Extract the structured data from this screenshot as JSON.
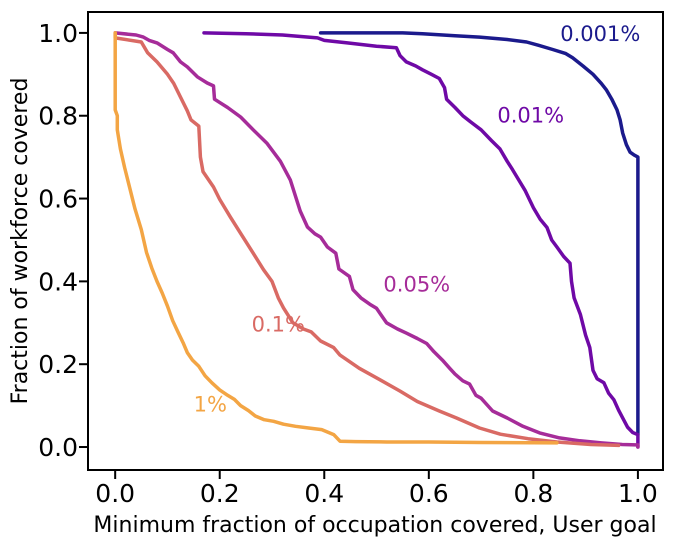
{
  "chart_data": {
    "type": "line",
    "title": "",
    "xlabel": "Minimum fraction of occupation covered, User goal",
    "ylabel": "Fraction of workforce covered",
    "xlim": [
      -0.052,
      1.048
    ],
    "ylim": [
      -0.0555,
      1.0505
    ],
    "grid": false,
    "legend": "inline-curve-labels",
    "background_color": "#ffffff",
    "axis_color": "#000000",
    "x_ticks": {
      "values": [
        0.0,
        0.2,
        0.4,
        0.6,
        0.8,
        1.0
      ],
      "labels": [
        "0.0",
        "0.2",
        "0.4",
        "0.6",
        "0.8",
        "1.0"
      ]
    },
    "y_ticks": {
      "values": [
        0.0,
        0.2,
        0.4,
        0.6,
        0.8,
        1.0
      ],
      "labels": [
        "0.0",
        "0.2",
        "0.4",
        "0.6",
        "0.8",
        "1.0"
      ]
    },
    "series": [
      {
        "name": "0.001%",
        "color": "#1b1a8c",
        "label_x": 0.928,
        "label_y": 0.998,
        "points": [
          [
            0.393,
            1.0
          ],
          [
            0.55,
            1.0
          ],
          [
            0.588,
            0.998
          ],
          [
            0.65,
            0.993
          ],
          [
            0.697,
            0.99
          ],
          [
            0.75,
            0.984
          ],
          [
            0.787,
            0.978
          ],
          [
            0.81,
            0.97
          ],
          [
            0.837,
            0.96
          ],
          [
            0.862,
            0.95
          ],
          [
            0.875,
            0.94
          ],
          [
            0.895,
            0.92
          ],
          [
            0.914,
            0.9
          ],
          [
            0.93,
            0.878
          ],
          [
            0.94,
            0.862
          ],
          [
            0.95,
            0.84
          ],
          [
            0.96,
            0.814
          ],
          [
            0.966,
            0.79
          ],
          [
            0.971,
            0.758
          ],
          [
            0.978,
            0.73
          ],
          [
            0.985,
            0.712
          ],
          [
            0.993,
            0.705
          ],
          [
            1.0,
            0.7
          ],
          [
            1.0,
            0.03
          ]
        ]
      },
      {
        "name": "0.01%",
        "color": "#6f09a6",
        "label_x": 0.795,
        "label_y": 0.802,
        "points": [
          [
            0.17,
            1.0
          ],
          [
            0.25,
            0.998
          ],
          [
            0.32,
            0.995
          ],
          [
            0.387,
            0.988
          ],
          [
            0.4,
            0.982
          ],
          [
            0.444,
            0.976
          ],
          [
            0.5,
            0.968
          ],
          [
            0.538,
            0.964
          ],
          [
            0.545,
            0.945
          ],
          [
            0.557,
            0.93
          ],
          [
            0.575,
            0.92
          ],
          [
            0.588,
            0.911
          ],
          [
            0.605,
            0.9
          ],
          [
            0.62,
            0.89
          ],
          [
            0.63,
            0.868
          ],
          [
            0.634,
            0.84
          ],
          [
            0.65,
            0.82
          ],
          [
            0.665,
            0.8
          ],
          [
            0.68,
            0.785
          ],
          [
            0.7,
            0.766
          ],
          [
            0.72,
            0.74
          ],
          [
            0.736,
            0.72
          ],
          [
            0.75,
            0.69
          ],
          [
            0.76,
            0.67
          ],
          [
            0.772,
            0.645
          ],
          [
            0.784,
            0.62
          ],
          [
            0.8,
            0.578
          ],
          [
            0.813,
            0.55
          ],
          [
            0.826,
            0.53
          ],
          [
            0.835,
            0.5
          ],
          [
            0.845,
            0.483
          ],
          [
            0.858,
            0.46
          ],
          [
            0.87,
            0.444
          ],
          [
            0.873,
            0.4
          ],
          [
            0.878,
            0.36
          ],
          [
            0.89,
            0.32
          ],
          [
            0.9,
            0.27
          ],
          [
            0.908,
            0.24
          ],
          [
            0.914,
            0.185
          ],
          [
            0.922,
            0.165
          ],
          [
            0.935,
            0.155
          ],
          [
            0.944,
            0.13
          ],
          [
            0.954,
            0.114
          ],
          [
            0.963,
            0.089
          ],
          [
            0.973,
            0.065
          ],
          [
            0.98,
            0.048
          ],
          [
            0.99,
            0.035
          ],
          [
            1.0,
            0.03
          ],
          [
            1.0,
            0.0
          ]
        ]
      },
      {
        "name": "0.05%",
        "color": "#a62c99",
        "label_x": 0.577,
        "label_y": 0.394,
        "points": [
          [
            0.0,
            1.0
          ],
          [
            0.04,
            0.995
          ],
          [
            0.054,
            0.99
          ],
          [
            0.065,
            0.982
          ],
          [
            0.08,
            0.976
          ],
          [
            0.1,
            0.96
          ],
          [
            0.111,
            0.952
          ],
          [
            0.125,
            0.93
          ],
          [
            0.138,
            0.918
          ],
          [
            0.157,
            0.894
          ],
          [
            0.176,
            0.879
          ],
          [
            0.188,
            0.872
          ],
          [
            0.19,
            0.84
          ],
          [
            0.215,
            0.82
          ],
          [
            0.24,
            0.797
          ],
          [
            0.264,
            0.766
          ],
          [
            0.29,
            0.734
          ],
          [
            0.316,
            0.69
          ],
          [
            0.335,
            0.645
          ],
          [
            0.354,
            0.57
          ],
          [
            0.368,
            0.531
          ],
          [
            0.382,
            0.515
          ],
          [
            0.393,
            0.507
          ],
          [
            0.406,
            0.483
          ],
          [
            0.422,
            0.468
          ],
          [
            0.428,
            0.43
          ],
          [
            0.448,
            0.412
          ],
          [
            0.455,
            0.38
          ],
          [
            0.47,
            0.36
          ],
          [
            0.487,
            0.345
          ],
          [
            0.5,
            0.335
          ],
          [
            0.519,
            0.3
          ],
          [
            0.54,
            0.285
          ],
          [
            0.557,
            0.275
          ],
          [
            0.578,
            0.262
          ],
          [
            0.596,
            0.25
          ],
          [
            0.61,
            0.23
          ],
          [
            0.626,
            0.21
          ],
          [
            0.64,
            0.19
          ],
          [
            0.65,
            0.176
          ],
          [
            0.665,
            0.16
          ],
          [
            0.678,
            0.152
          ],
          [
            0.69,
            0.125
          ],
          [
            0.7,
            0.118
          ],
          [
            0.722,
            0.087
          ],
          [
            0.75,
            0.07
          ],
          [
            0.78,
            0.05
          ],
          [
            0.812,
            0.034
          ],
          [
            0.85,
            0.022
          ],
          [
            0.889,
            0.015
          ],
          [
            0.93,
            0.01
          ],
          [
            0.97,
            0.006
          ],
          [
            1.0,
            0.005
          ],
          [
            1.0,
            0.0
          ]
        ]
      },
      {
        "name": "0.1%",
        "color": "#d96a64",
        "label_x": 0.312,
        "label_y": 0.297,
        "points": [
          [
            0.0,
            1.0
          ],
          [
            0.0,
            0.988
          ],
          [
            0.05,
            0.978
          ],
          [
            0.062,
            0.952
          ],
          [
            0.08,
            0.93
          ],
          [
            0.1,
            0.9
          ],
          [
            0.112,
            0.878
          ],
          [
            0.125,
            0.845
          ],
          [
            0.138,
            0.812
          ],
          [
            0.145,
            0.79
          ],
          [
            0.16,
            0.775
          ],
          [
            0.163,
            0.7
          ],
          [
            0.168,
            0.665
          ],
          [
            0.188,
            0.628
          ],
          [
            0.2,
            0.598
          ],
          [
            0.22,
            0.556
          ],
          [
            0.24,
            0.516
          ],
          [
            0.264,
            0.468
          ],
          [
            0.284,
            0.428
          ],
          [
            0.3,
            0.4
          ],
          [
            0.312,
            0.36
          ],
          [
            0.322,
            0.336
          ],
          [
            0.34,
            0.3
          ],
          [
            0.36,
            0.285
          ],
          [
            0.375,
            0.278
          ],
          [
            0.393,
            0.256
          ],
          [
            0.418,
            0.24
          ],
          [
            0.43,
            0.222
          ],
          [
            0.467,
            0.19
          ],
          [
            0.51,
            0.16
          ],
          [
            0.545,
            0.135
          ],
          [
            0.578,
            0.11
          ],
          [
            0.62,
            0.087
          ],
          [
            0.653,
            0.07
          ],
          [
            0.697,
            0.046
          ],
          [
            0.737,
            0.031
          ],
          [
            0.79,
            0.02
          ],
          [
            0.845,
            0.012
          ],
          [
            0.91,
            0.006
          ],
          [
            0.963,
            0.004
          ]
        ]
      },
      {
        "name": "1%",
        "color": "#f3a544",
        "label_x": 0.182,
        "label_y": 0.104,
        "points": [
          [
            0.0,
            1.0
          ],
          [
            0.0,
            0.814
          ],
          [
            0.004,
            0.8
          ],
          [
            0.004,
            0.766
          ],
          [
            0.01,
            0.72
          ],
          [
            0.018,
            0.675
          ],
          [
            0.028,
            0.625
          ],
          [
            0.038,
            0.575
          ],
          [
            0.05,
            0.525
          ],
          [
            0.06,
            0.47
          ],
          [
            0.07,
            0.432
          ],
          [
            0.08,
            0.4
          ],
          [
            0.09,
            0.372
          ],
          [
            0.1,
            0.34
          ],
          [
            0.11,
            0.305
          ],
          [
            0.12,
            0.278
          ],
          [
            0.13,
            0.252
          ],
          [
            0.138,
            0.228
          ],
          [
            0.148,
            0.21
          ],
          [
            0.16,
            0.195
          ],
          [
            0.172,
            0.172
          ],
          [
            0.185,
            0.155
          ],
          [
            0.2,
            0.138
          ],
          [
            0.215,
            0.125
          ],
          [
            0.228,
            0.115
          ],
          [
            0.24,
            0.1
          ],
          [
            0.255,
            0.088
          ],
          [
            0.268,
            0.075
          ],
          [
            0.285,
            0.066
          ],
          [
            0.303,
            0.062
          ],
          [
            0.322,
            0.055
          ],
          [
            0.345,
            0.05
          ],
          [
            0.37,
            0.046
          ],
          [
            0.395,
            0.042
          ],
          [
            0.418,
            0.03
          ],
          [
            0.43,
            0.014
          ],
          [
            0.46,
            0.013
          ],
          [
            0.52,
            0.012
          ],
          [
            0.6,
            0.012
          ],
          [
            0.7,
            0.011
          ],
          [
            0.845,
            0.01
          ]
        ]
      }
    ]
  }
}
